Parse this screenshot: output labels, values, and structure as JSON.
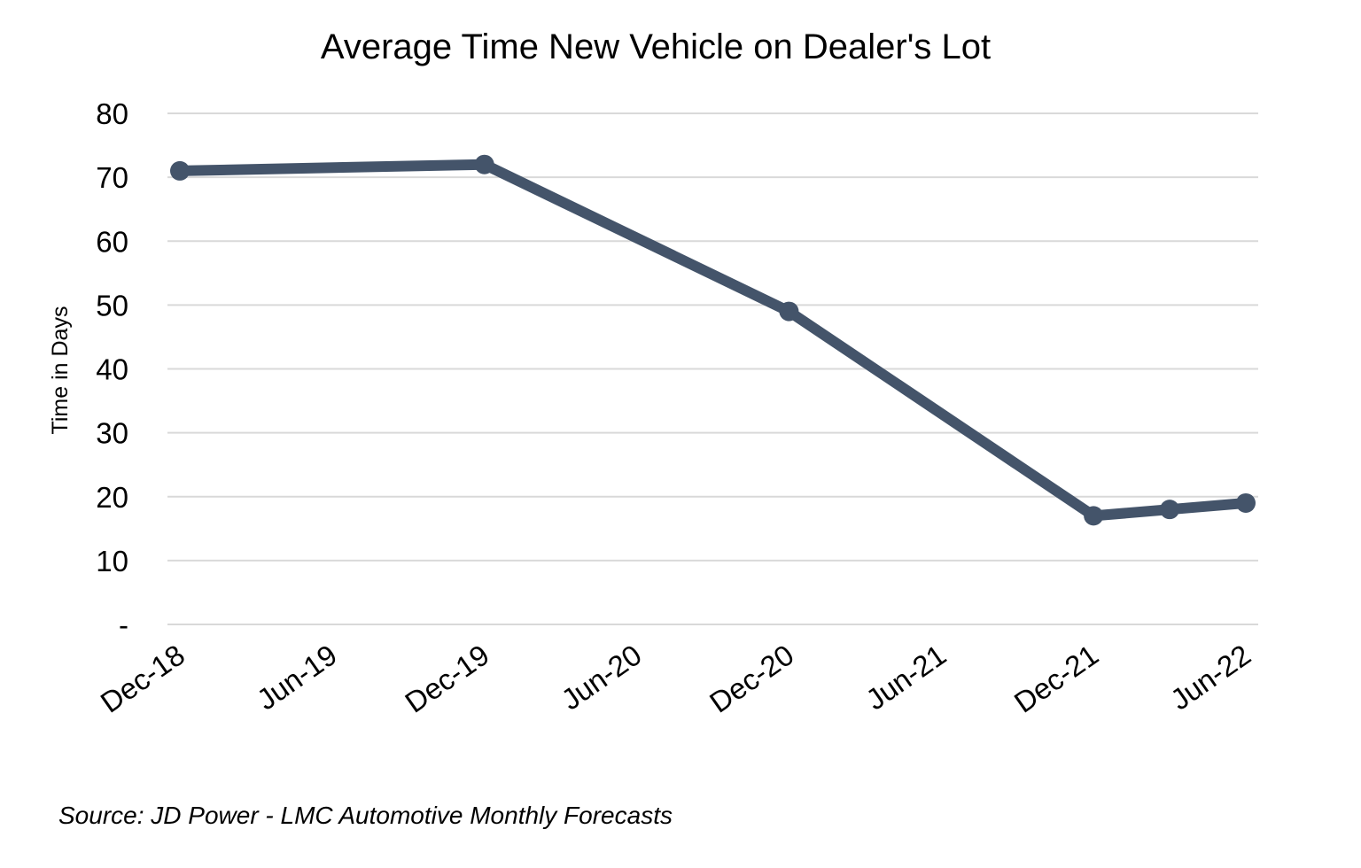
{
  "chart_data": {
    "type": "line",
    "title": "Average Time New Vehicle on Dealer's Lot",
    "xlabel": "",
    "ylabel": "Time in Days",
    "x_tick_labels": [
      "Dec-18",
      "Jun-19",
      "Dec-19",
      "Jun-20",
      "Dec-20",
      "Jun-21",
      "Dec-21",
      "Jun-22"
    ],
    "y_tick_labels": [
      "-",
      "10",
      "20",
      "30",
      "40",
      "50",
      "60",
      "70",
      "80"
    ],
    "y_ticks": [
      0,
      10,
      20,
      30,
      40,
      50,
      60,
      70,
      80
    ],
    "ylim": [
      0,
      80
    ],
    "xlim": [
      "Dec-18",
      "Jun-22"
    ],
    "grid": true,
    "series": [
      {
        "color": "#44546a",
        "markers": true,
        "points": [
          {
            "x": "Dec-18",
            "y": 71
          },
          {
            "x": "Dec-19",
            "y": 72
          },
          {
            "x": "Dec-20",
            "y": 49
          },
          {
            "x": "Dec-21",
            "y": 17
          },
          {
            "x": "Mar-22",
            "y": 18
          },
          {
            "x": "Jun-22",
            "y": 19
          }
        ]
      }
    ]
  },
  "source": "Source:  JD Power - LMC Automotive Monthly Forecasts"
}
